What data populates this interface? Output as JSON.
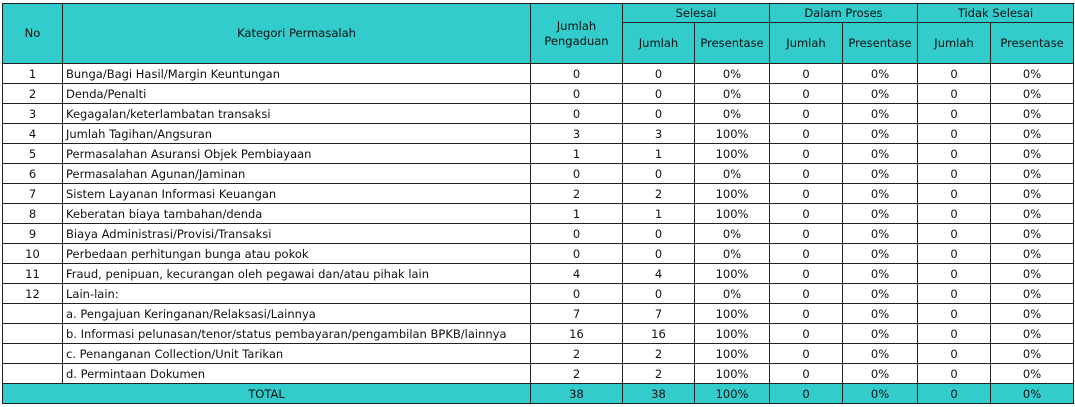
{
  "header": {
    "no": "No",
    "kategori": "Kategori Permasalah",
    "jumlah_pengaduan": "Jumlah Pengaduan",
    "groups": [
      "Selesai",
      "Dalam Proses",
      "Tidak Selesai"
    ],
    "jumlah": "Jumlah",
    "presentase": "Presentase"
  },
  "colors": {
    "header_bg": "#33CCCC"
  },
  "rows": [
    {
      "no": "1",
      "kategori": "Bunga/Bagi Hasil/Margin Keuntungan",
      "total": "0",
      "s_j": "0",
      "s_p": "0%",
      "d_j": "0",
      "d_p": "0%",
      "t_j": "0",
      "t_p": "0%"
    },
    {
      "no": "2",
      "kategori": "Denda/Penalti",
      "total": "0",
      "s_j": "0",
      "s_p": "0%",
      "d_j": "0",
      "d_p": "0%",
      "t_j": "0",
      "t_p": "0%"
    },
    {
      "no": "3",
      "kategori": "Kegagalan/keterlambatan transaksi",
      "total": "0",
      "s_j": "0",
      "s_p": "0%",
      "d_j": "0",
      "d_p": "0%",
      "t_j": "0",
      "t_p": "0%"
    },
    {
      "no": "4",
      "kategori": "Jumlah Tagihan/Angsuran",
      "total": "3",
      "s_j": "3",
      "s_p": "100%",
      "d_j": "0",
      "d_p": "0%",
      "t_j": "0",
      "t_p": "0%"
    },
    {
      "no": "5",
      "kategori": "Permasalahan Asuransi Objek Pembiayaan",
      "total": "1",
      "s_j": "1",
      "s_p": "100%",
      "d_j": "0",
      "d_p": "0%",
      "t_j": "0",
      "t_p": "0%"
    },
    {
      "no": "6",
      "kategori": "Permasalahan Agunan/Jaminan",
      "total": "0",
      "s_j": "0",
      "s_p": "0%",
      "d_j": "0",
      "d_p": "0%",
      "t_j": "0",
      "t_p": "0%"
    },
    {
      "no": "7",
      "kategori": "Sistem Layanan  Informasi Keuangan",
      "total": "2",
      "s_j": "2",
      "s_p": "100%",
      "d_j": "0",
      "d_p": "0%",
      "t_j": "0",
      "t_p": "0%"
    },
    {
      "no": "8",
      "kategori": "Keberatan biaya tambahan/denda",
      "total": "1",
      "s_j": "1",
      "s_p": "100%",
      "d_j": "0",
      "d_p": "0%",
      "t_j": "0",
      "t_p": "0%"
    },
    {
      "no": "9",
      "kategori": "Biaya Administrasi/Provisi/Transaksi",
      "total": "0",
      "s_j": "0",
      "s_p": "0%",
      "d_j": "0",
      "d_p": "0%",
      "t_j": "0",
      "t_p": "0%"
    },
    {
      "no": "10",
      "kategori": "Perbedaan perhitungan bunga atau pokok",
      "total": "0",
      "s_j": "0",
      "s_p": "0%",
      "d_j": "0",
      "d_p": "0%",
      "t_j": "0",
      "t_p": "0%"
    },
    {
      "no": "11",
      "kategori": "Fraud, penipuan, kecurangan oleh pegawai dan/atau pihak lain",
      "total": "4",
      "s_j": "4",
      "s_p": "100%",
      "d_j": "0",
      "d_p": "0%",
      "t_j": "0",
      "t_p": "0%"
    },
    {
      "no": "12",
      "kategori": "Lain-lain:",
      "total": "0",
      "s_j": "0",
      "s_p": "0%",
      "d_j": "0",
      "d_p": "0%",
      "t_j": "0",
      "t_p": "0%"
    },
    {
      "no": "",
      "kategori": "a. Pengajuan Keringanan/Relaksasi/Lainnya",
      "total": "7",
      "s_j": "7",
      "s_p": "100%",
      "d_j": "0",
      "d_p": "0%",
      "t_j": "0",
      "t_p": "0%"
    },
    {
      "no": "",
      "kategori": "b. Informasi pelunasan/tenor/status pembayaran/pengambilan BPKB/lainnya",
      "total": "16",
      "s_j": "16",
      "s_p": "100%",
      "d_j": "0",
      "d_p": "0%",
      "t_j": "0",
      "t_p": "0%"
    },
    {
      "no": "",
      "kategori": "c. Penanganan Collection/Unit Tarikan",
      "total": "2",
      "s_j": "2",
      "s_p": "100%",
      "d_j": "0",
      "d_p": "0%",
      "t_j": "0",
      "t_p": "0%"
    },
    {
      "no": "",
      "kategori": "d. Permintaan Dokumen",
      "total": "2",
      "s_j": "2",
      "s_p": "100%",
      "d_j": "0",
      "d_p": "0%",
      "t_j": "0",
      "t_p": "0%"
    }
  ],
  "total": {
    "label": "TOTAL",
    "total": "38",
    "s_j": "38",
    "s_p": "100%",
    "d_j": "0",
    "d_p": "0%",
    "t_j": "0",
    "t_p": "0%"
  }
}
